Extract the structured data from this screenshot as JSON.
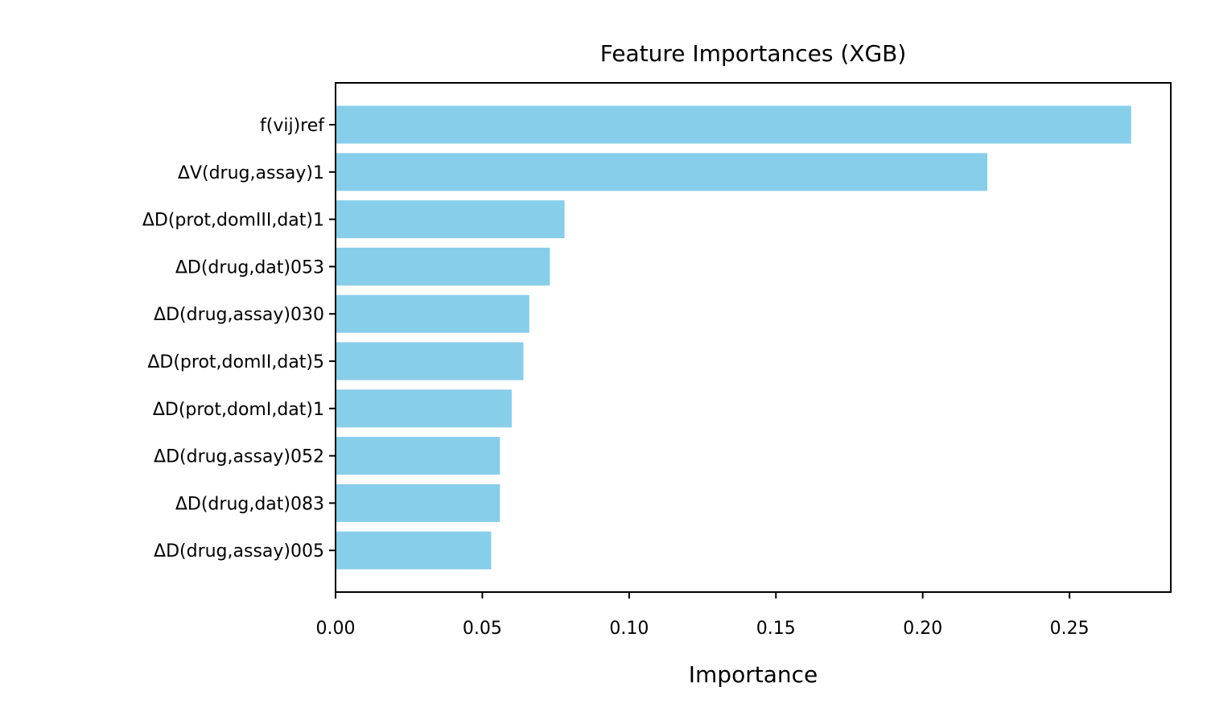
{
  "chart_data": {
    "type": "bar",
    "orientation": "horizontal",
    "title": "Feature Importances (XGB)",
    "xlabel": "Importance",
    "ylabel": "",
    "categories": [
      "f(vij)ref",
      "ΔV(drug,assay)1",
      "ΔD(prot,domIII,dat)1",
      "ΔD(drug,dat)053",
      "ΔD(drug,assay)030",
      "ΔD(prot,domII,dat)5",
      "ΔD(prot,domI,dat)1",
      "ΔD(drug,assay)052",
      "ΔD(drug,dat)083",
      "ΔD(drug,assay)005"
    ],
    "values": [
      0.271,
      0.222,
      0.078,
      0.073,
      0.066,
      0.064,
      0.06,
      0.056,
      0.056,
      0.053
    ],
    "xlim": [
      0,
      0.2845
    ],
    "xticks": [
      0.0,
      0.05,
      0.1,
      0.15,
      0.2,
      0.25
    ],
    "xtick_labels": [
      "0.00",
      "0.05",
      "0.10",
      "0.15",
      "0.20",
      "0.25"
    ],
    "bar_color": "#87ceeb",
    "grid": false,
    "legend": "none"
  }
}
